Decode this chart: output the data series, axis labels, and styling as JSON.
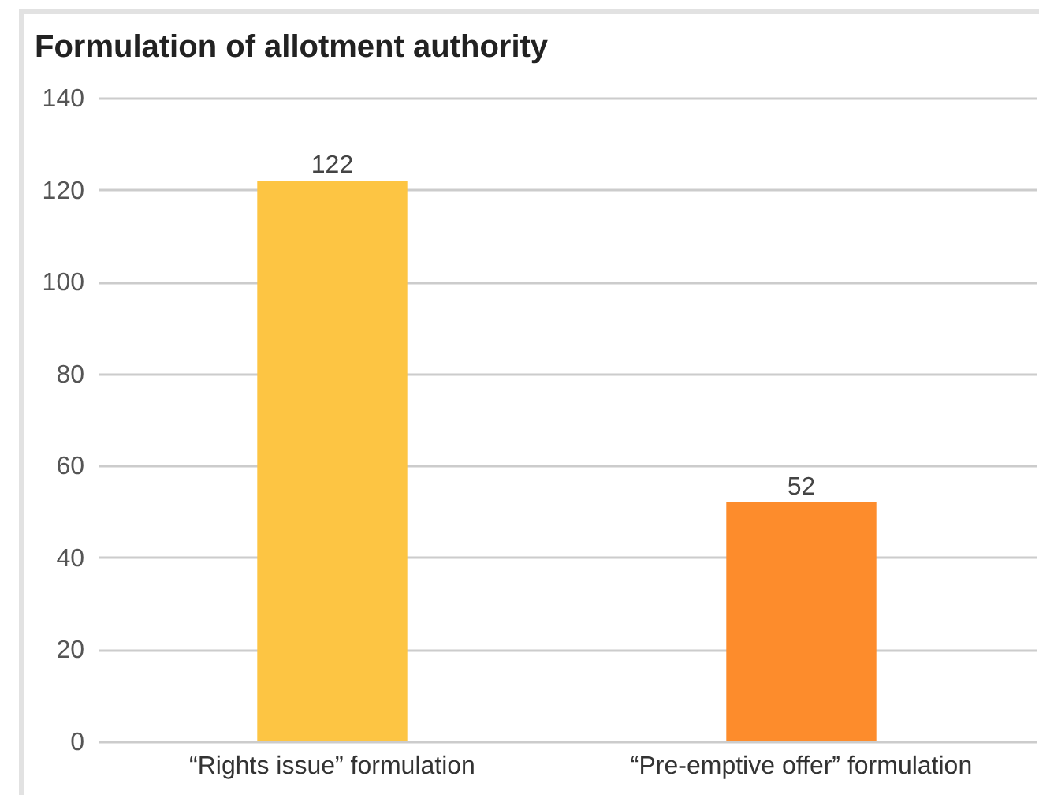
{
  "chart_data": {
    "type": "bar",
    "title": "Formulation of allotment authority",
    "categories": [
      "“Rights issue” formulation",
      "“Pre-emptive offer” formulation"
    ],
    "values": [
      122,
      52
    ],
    "colors": [
      "#fdc543",
      "#fd8c2c"
    ],
    "ylim": [
      0,
      140
    ],
    "yticks": [
      0,
      20,
      40,
      60,
      80,
      100,
      120,
      140
    ],
    "grid": "y",
    "data_labels": true
  }
}
